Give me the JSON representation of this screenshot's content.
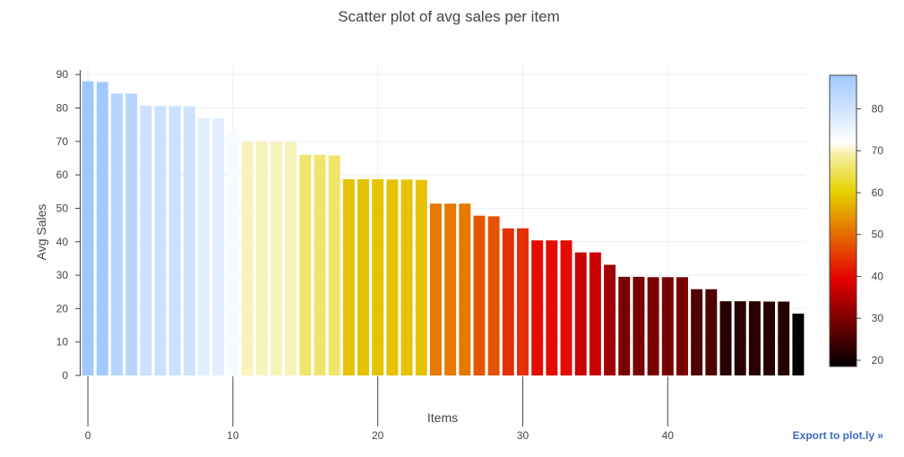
{
  "chart_data": {
    "type": "bar",
    "title": "Scatter plot of avg sales per item",
    "xlabel": "Items",
    "ylabel": "Avg Sales",
    "x": [
      0,
      1,
      2,
      3,
      4,
      5,
      6,
      7,
      8,
      9,
      10,
      11,
      12,
      13,
      14,
      15,
      16,
      17,
      18,
      19,
      20,
      21,
      22,
      23,
      24,
      25,
      26,
      27,
      28,
      29,
      30,
      31,
      32,
      33,
      34,
      35,
      36,
      37,
      38,
      39,
      40,
      41,
      42,
      43,
      44,
      45,
      46,
      47,
      48,
      49
    ],
    "values": [
      88.0,
      87.8,
      84.3,
      84.3,
      80.7,
      80.6,
      80.6,
      80.5,
      77.0,
      77.0,
      73.3,
      69.8,
      69.8,
      69.8,
      69.8,
      66.0,
      66.0,
      65.8,
      58.7,
      58.7,
      58.7,
      58.6,
      58.6,
      58.5,
      51.4,
      51.4,
      51.4,
      47.8,
      47.6,
      44.0,
      44.0,
      40.4,
      40.4,
      40.4,
      36.8,
      36.8,
      33.1,
      29.5,
      29.5,
      29.4,
      29.4,
      29.4,
      25.8,
      25.8,
      22.2,
      22.2,
      22.2,
      22.1,
      22.1,
      18.5
    ],
    "xlim": [
      -0.5,
      49.5
    ],
    "ylim": [
      0,
      93
    ],
    "xticks": [
      0,
      10,
      20,
      30,
      40
    ],
    "yticks": [
      0,
      10,
      20,
      30,
      40,
      50,
      60,
      70,
      80,
      90
    ],
    "grid": true,
    "colorbar": {
      "min": 18.5,
      "max": 88.0,
      "ticks": [
        20,
        30,
        40,
        50,
        60,
        70,
        80
      ],
      "colorscale": [
        [
          0.0,
          "#000000"
        ],
        [
          0.3,
          "#e60000"
        ],
        [
          0.6,
          "#e6d200"
        ],
        [
          0.73,
          "#f5f0a8"
        ],
        [
          0.77,
          "#ffffff"
        ],
        [
          1.0,
          "#a0c8ff"
        ]
      ]
    }
  },
  "export_link": {
    "label": "Export to plot.ly »"
  }
}
